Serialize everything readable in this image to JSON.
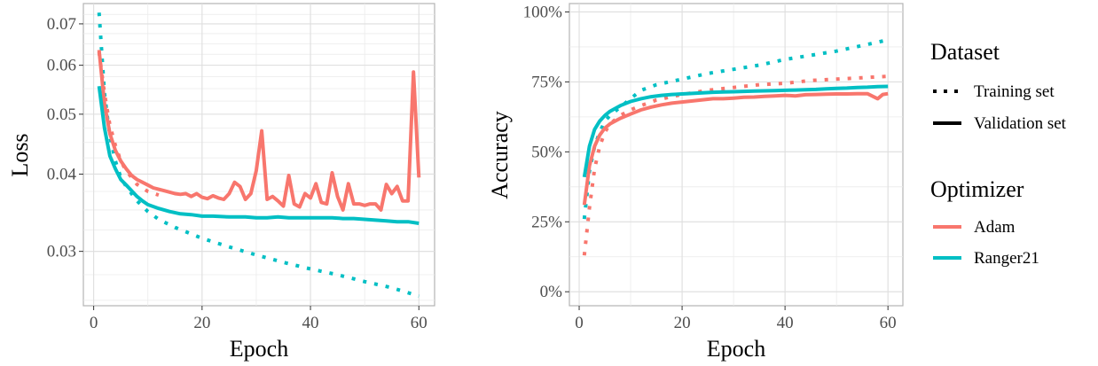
{
  "chart_data": [
    {
      "type": "line",
      "xlabel": "Epoch",
      "ylabel": "Loss",
      "y_scale": "log",
      "xlim": [
        -1.9,
        62.9
      ],
      "ylim": [
        0.0245,
        0.0755
      ],
      "x_ticks": [
        0,
        20,
        40,
        60
      ],
      "x_tick_labels": [
        "0",
        "20",
        "40",
        "60"
      ],
      "y_ticks": [
        0.03,
        0.04,
        0.05,
        0.06,
        0.07
      ],
      "y_tick_labels": [
        "0.03",
        "0.04",
        "0.05",
        "0.06",
        "0.07"
      ],
      "grid": true,
      "series": [
        {
          "name": "Adam",
          "dataset": "Training set",
          "color": "#F8766D",
          "dash": "dotted",
          "x": [
            1,
            2,
            3,
            4,
            5,
            6,
            8,
            10,
            12
          ],
          "y": [
            0.063,
            0.054,
            0.048,
            0.0445,
            0.042,
            0.0405,
            0.0385,
            0.0375,
            0.037
          ]
        },
        {
          "name": "Ranger21",
          "dataset": "Training set",
          "color": "#00BFC4",
          "dash": "dotted",
          "x": [
            1,
            2,
            3,
            4,
            5,
            6,
            8,
            10,
            12,
            15,
            20,
            25,
            30,
            35,
            40,
            45,
            50,
            55,
            60
          ],
          "y": [
            0.073,
            0.054,
            0.046,
            0.042,
            0.0395,
            0.0382,
            0.0362,
            0.0348,
            0.0338,
            0.0328,
            0.0315,
            0.0305,
            0.0296,
            0.0288,
            0.0281,
            0.0275,
            0.0268,
            0.0262,
            0.0254
          ]
        },
        {
          "name": "Adam",
          "dataset": "Validation set",
          "color": "#F8766D",
          "dash": "solid",
          "x": [
            1,
            2,
            3,
            4,
            5,
            6,
            7,
            8,
            9,
            10,
            11,
            12,
            13,
            14,
            15,
            16,
            17,
            18,
            19,
            20,
            21,
            22,
            23,
            24,
            25,
            26,
            27,
            28,
            29,
            30,
            31,
            32,
            33,
            34,
            35,
            36,
            37,
            38,
            39,
            40,
            41,
            42,
            43,
            44,
            45,
            46,
            47,
            48,
            49,
            50,
            51,
            52,
            53,
            54,
            55,
            56,
            57,
            58,
            59,
            60
          ],
          "y": [
            0.0635,
            0.052,
            0.0465,
            0.0437,
            0.042,
            0.0408,
            0.0398,
            0.0392,
            0.0388,
            0.0384,
            0.038,
            0.0378,
            0.0376,
            0.0374,
            0.0372,
            0.0371,
            0.0372,
            0.0368,
            0.0372,
            0.0367,
            0.0365,
            0.0369,
            0.0366,
            0.0364,
            0.0372,
            0.0388,
            0.0382,
            0.0364,
            0.0372,
            0.0405,
            0.047,
            0.0364,
            0.0368,
            0.0362,
            0.0355,
            0.0398,
            0.0358,
            0.0354,
            0.0372,
            0.0366,
            0.0386,
            0.036,
            0.0358,
            0.0402,
            0.0368,
            0.035,
            0.0386,
            0.0358,
            0.0358,
            0.0356,
            0.0358,
            0.0358,
            0.035,
            0.0385,
            0.0372,
            0.0382,
            0.0362,
            0.0362,
            0.0585,
            0.0395
          ]
        },
        {
          "name": "Ranger21",
          "dataset": "Validation set",
          "color": "#00BFC4",
          "dash": "solid",
          "x": [
            1,
            2,
            3,
            4,
            5,
            6,
            7,
            8,
            9,
            10,
            12,
            14,
            16,
            18,
            20,
            22,
            25,
            28,
            30,
            32,
            34,
            36,
            38,
            40,
            42,
            44,
            46,
            48,
            50,
            52,
            54,
            56,
            58,
            60
          ],
          "y": [
            0.0555,
            0.0475,
            0.0428,
            0.0408,
            0.0392,
            0.0384,
            0.0376,
            0.0368,
            0.0362,
            0.0357,
            0.0352,
            0.0348,
            0.0345,
            0.0344,
            0.0342,
            0.0342,
            0.0341,
            0.0341,
            0.034,
            0.034,
            0.0341,
            0.034,
            0.034,
            0.034,
            0.034,
            0.034,
            0.0339,
            0.0339,
            0.0338,
            0.0337,
            0.0336,
            0.0335,
            0.0335,
            0.0333
          ]
        }
      ]
    },
    {
      "type": "line",
      "xlabel": "Epoch",
      "ylabel": "Accuracy",
      "xlim": [
        -1.9,
        62.9
      ],
      "ylim": [
        -0.05,
        1.03
      ],
      "x_ticks": [
        0,
        20,
        40,
        60
      ],
      "x_tick_labels": [
        "0",
        "20",
        "40",
        "60"
      ],
      "y_ticks": [
        0,
        0.25,
        0.5,
        0.75,
        1.0
      ],
      "y_tick_labels": [
        "0%",
        "25%",
        "50%",
        "75%",
        "100%"
      ],
      "grid": true,
      "series": [
        {
          "name": "Adam",
          "dataset": "Training set",
          "color": "#F8766D",
          "dash": "dotted",
          "x": [
            1,
            2,
            3,
            4,
            5,
            6,
            8,
            10,
            12,
            15,
            20,
            25,
            30,
            35,
            40,
            45,
            50,
            55,
            60
          ],
          "y": [
            0.13,
            0.3,
            0.44,
            0.52,
            0.57,
            0.6,
            0.63,
            0.65,
            0.665,
            0.685,
            0.705,
            0.72,
            0.73,
            0.74,
            0.745,
            0.755,
            0.76,
            0.765,
            0.77
          ]
        },
        {
          "name": "Ranger21",
          "dataset": "Training set",
          "color": "#00BFC4",
          "dash": "dotted",
          "x": [
            1,
            2,
            3,
            4,
            5,
            6,
            8,
            10,
            12,
            15,
            20,
            25,
            30,
            35,
            40,
            45,
            50,
            55,
            60
          ],
          "y": [
            0.26,
            0.43,
            0.52,
            0.57,
            0.61,
            0.63,
            0.66,
            0.69,
            0.72,
            0.74,
            0.76,
            0.78,
            0.795,
            0.81,
            0.83,
            0.845,
            0.86,
            0.88,
            0.9
          ]
        },
        {
          "name": "Adam",
          "dataset": "Validation set",
          "color": "#F8766D",
          "dash": "solid",
          "x": [
            1,
            2,
            3,
            4,
            5,
            6,
            8,
            10,
            12,
            14,
            16,
            18,
            20,
            22,
            24,
            26,
            28,
            30,
            32,
            34,
            36,
            38,
            40,
            42,
            44,
            46,
            48,
            50,
            52,
            54,
            56,
            58,
            59,
            60
          ],
          "y": [
            0.31,
            0.45,
            0.52,
            0.56,
            0.585,
            0.6,
            0.62,
            0.635,
            0.65,
            0.66,
            0.668,
            0.674,
            0.678,
            0.682,
            0.686,
            0.69,
            0.69,
            0.692,
            0.695,
            0.696,
            0.698,
            0.7,
            0.702,
            0.7,
            0.704,
            0.705,
            0.706,
            0.707,
            0.707,
            0.708,
            0.708,
            0.69,
            0.705,
            0.708
          ]
        },
        {
          "name": "Ranger21",
          "dataset": "Validation set",
          "color": "#00BFC4",
          "dash": "solid",
          "x": [
            1,
            2,
            3,
            4,
            5,
            6,
            8,
            10,
            12,
            14,
            16,
            18,
            20,
            22,
            24,
            26,
            28,
            30,
            32,
            34,
            36,
            38,
            40,
            42,
            44,
            46,
            48,
            50,
            52,
            54,
            56,
            58,
            60
          ],
          "y": [
            0.41,
            0.52,
            0.58,
            0.61,
            0.63,
            0.645,
            0.665,
            0.68,
            0.69,
            0.697,
            0.702,
            0.705,
            0.707,
            0.709,
            0.711,
            0.713,
            0.714,
            0.715,
            0.716,
            0.717,
            0.718,
            0.719,
            0.72,
            0.721,
            0.722,
            0.723,
            0.725,
            0.727,
            0.728,
            0.73,
            0.731,
            0.733,
            0.734
          ]
        }
      ]
    }
  ],
  "legend": {
    "dataset_title": "Dataset",
    "dataset_items": [
      {
        "label": "Training set",
        "linetype": "dotted"
      },
      {
        "label": "Validation set",
        "linetype": "solid"
      }
    ],
    "optimizer_title": "Optimizer",
    "optimizer_items": [
      {
        "label": "Adam",
        "color": "#F8766D"
      },
      {
        "label": "Ranger21",
        "color": "#00BFC4"
      }
    ]
  }
}
